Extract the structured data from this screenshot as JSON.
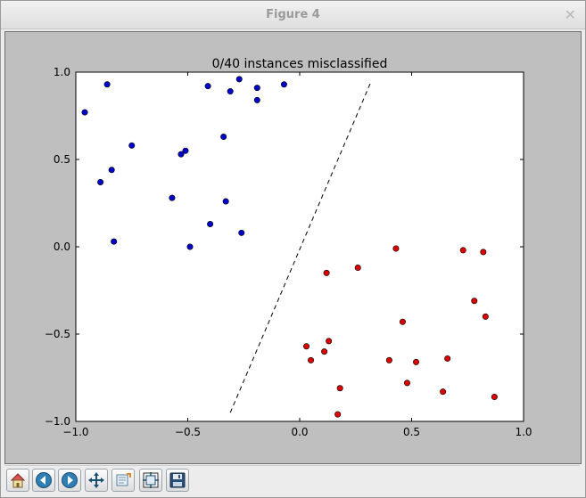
{
  "window": {
    "title": "Figure 4",
    "close_glyph": "✕"
  },
  "toolbar": {
    "buttons": [
      {
        "name": "home-button",
        "icon": "home-icon"
      },
      {
        "name": "back-button",
        "icon": "arrow-left-icon"
      },
      {
        "name": "forward-button",
        "icon": "arrow-right-icon"
      },
      {
        "name": "pan-button",
        "icon": "move-icon"
      },
      {
        "name": "zoom-button",
        "icon": "zoom-rect-icon"
      },
      {
        "name": "configure-subplots-button",
        "icon": "subplots-icon"
      },
      {
        "name": "save-button",
        "icon": "floppy-disk-icon"
      }
    ]
  },
  "chart_data": {
    "type": "scatter",
    "title": "0/40 instances misclassified",
    "xlim": [
      -1.0,
      1.0
    ],
    "ylim": [
      -1.0,
      1.0
    ],
    "xticks": [
      "−1.0",
      "−0.5",
      "0.0",
      "0.5",
      "1.0"
    ],
    "xtick_values": [
      -1.0,
      -0.5,
      0.0,
      0.5,
      1.0
    ],
    "yticks": [
      "−1.0",
      "−0.5",
      "0.0",
      "0.5",
      "1.0"
    ],
    "ytick_values": [
      -1.0,
      -0.5,
      0.0,
      0.5,
      1.0
    ],
    "grid": false,
    "series": [
      {
        "color": "#0000cc",
        "points": [
          [
            -0.96,
            0.77
          ],
          [
            -0.86,
            0.93
          ],
          [
            -0.84,
            0.44
          ],
          [
            -0.89,
            0.37
          ],
          [
            -0.75,
            0.58
          ],
          [
            -0.53,
            0.53
          ],
          [
            -0.51,
            0.55
          ],
          [
            -0.57,
            0.28
          ],
          [
            -0.83,
            0.03
          ],
          [
            -0.49,
            0.0
          ],
          [
            -0.41,
            0.92
          ],
          [
            -0.27,
            0.96
          ],
          [
            -0.31,
            0.89
          ],
          [
            -0.19,
            0.91
          ],
          [
            -0.19,
            0.84
          ],
          [
            -0.07,
            0.93
          ],
          [
            -0.34,
            0.63
          ],
          [
            -0.33,
            0.26
          ],
          [
            -0.4,
            0.13
          ],
          [
            -0.26,
            0.08
          ]
        ]
      },
      {
        "color": "#dd0000",
        "points": [
          [
            0.43,
            -0.01
          ],
          [
            0.73,
            -0.02
          ],
          [
            0.82,
            -0.03
          ],
          [
            0.12,
            -0.15
          ],
          [
            0.26,
            -0.12
          ],
          [
            0.78,
            -0.31
          ],
          [
            0.83,
            -0.4
          ],
          [
            0.46,
            -0.43
          ],
          [
            0.03,
            -0.57
          ],
          [
            0.13,
            -0.54
          ],
          [
            0.11,
            -0.6
          ],
          [
            0.05,
            -0.65
          ],
          [
            0.4,
            -0.65
          ],
          [
            0.52,
            -0.66
          ],
          [
            0.66,
            -0.64
          ],
          [
            0.48,
            -0.78
          ],
          [
            0.18,
            -0.81
          ],
          [
            0.64,
            -0.83
          ],
          [
            0.87,
            -0.86
          ],
          [
            0.17,
            -0.96
          ]
        ]
      }
    ],
    "decision_boundary": {
      "style": "dashed",
      "color": "#000000",
      "points": [
        [
          -0.31,
          -0.95
        ],
        [
          0.32,
          0.95
        ]
      ]
    }
  }
}
